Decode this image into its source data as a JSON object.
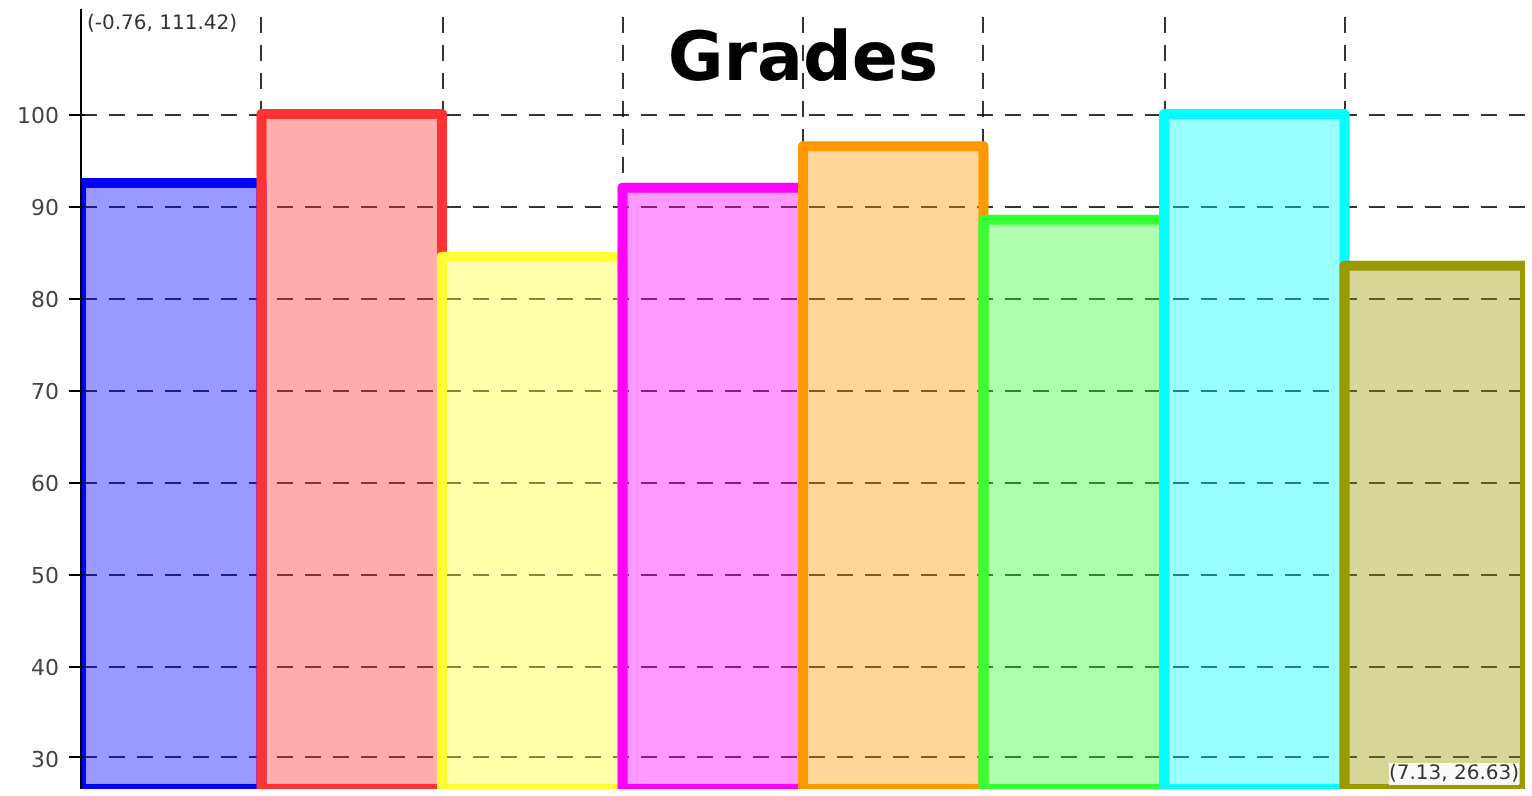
{
  "chart_data": {
    "type": "bar",
    "title": "Grades",
    "categories": [
      null,
      null,
      null,
      null,
      null,
      null,
      null,
      null
    ],
    "values": [
      92.5,
      100,
      84.5,
      92,
      96.5,
      88.5,
      100,
      83.5
    ],
    "colors": [
      "#0000ff",
      "#ff3333",
      "#ffff33",
      "#ff00ff",
      "#ff9900",
      "#33ff33",
      "#00ffff",
      "#999900"
    ],
    "ylim": [
      26.63,
      111.42
    ],
    "yticks": [
      30,
      40,
      50,
      60,
      70,
      80,
      90,
      100
    ],
    "tick_labels": "y",
    "grid": true,
    "annotations": [
      "(-0.76, 111.42)",
      "(7.13, 26.63)"
    ]
  }
}
